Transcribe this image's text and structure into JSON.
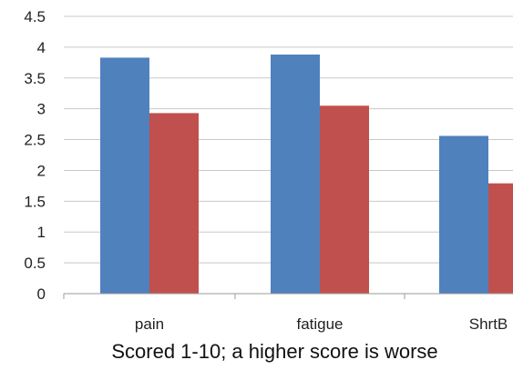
{
  "chart_data": {
    "type": "bar",
    "categories": [
      "pain",
      "fatigue",
      "ShrtB"
    ],
    "series": [
      {
        "values": [
          3.83,
          3.88,
          2.56
        ],
        "color": "#4f81bd"
      },
      {
        "values": [
          2.93,
          3.05,
          1.79
        ],
        "color": "#c0504d"
      }
    ],
    "title": "",
    "xlabel": "Scored 1-10; a higher score is worse",
    "ylabel": "",
    "ylim": [
      0,
      4.5
    ],
    "yticks": [
      0,
      0.5,
      1,
      1.5,
      2,
      2.5,
      3,
      3.5,
      4,
      4.5
    ],
    "grid": true,
    "legend": "none"
  }
}
